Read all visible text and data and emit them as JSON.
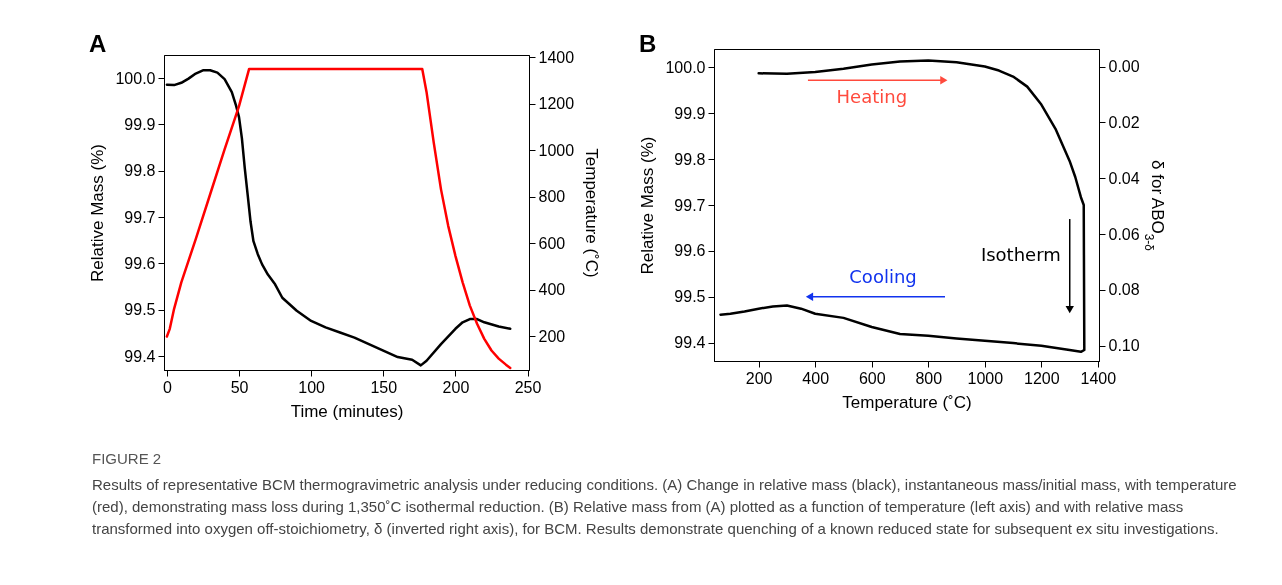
{
  "chart_data": [
    {
      "type": "line",
      "title": "A",
      "xlabel": "Time (minutes)",
      "ylabel": "Relative Mass (%)",
      "y2label": "Temperature (˚C)",
      "xlim": [
        -2,
        251
      ],
      "xticks": [
        0,
        50,
        100,
        150,
        200,
        250
      ],
      "ylim": [
        99.37,
        100.05
      ],
      "yticks": [
        99.4,
        99.5,
        99.6,
        99.7,
        99.8,
        99.9,
        {
          "value": 100,
          "label": "100.0"
        }
      ],
      "y2lim": [
        55,
        1410
      ],
      "y2ticks": [
        200,
        400,
        600,
        800,
        1000,
        1200,
        1400
      ],
      "series": [
        {
          "color": "#000000",
          "x": [
            0,
            5,
            10,
            15,
            20,
            25,
            30,
            35,
            40,
            45,
            48,
            50,
            52,
            54,
            56,
            58,
            60,
            63,
            66,
            70,
            75,
            80,
            90,
            100,
            110,
            120,
            130,
            140,
            150,
            160,
            170,
            176,
            180,
            190,
            200,
            205,
            210,
            215,
            220,
            230,
            238
          ],
          "values": [
            99.986,
            99.985,
            99.99,
            99.999,
            100.01,
            100.017,
            100.017,
            100.012,
            99.998,
            99.97,
            99.94,
            99.916,
            99.87,
            99.805,
            99.748,
            99.69,
            99.648,
            99.62,
            99.598,
            99.576,
            99.555,
            99.526,
            99.498,
            99.476,
            99.462,
            99.451,
            99.44,
            99.426,
            99.412,
            99.398,
            99.392,
            99.38,
            99.39,
            99.426,
            99.459,
            99.473,
            99.48,
            99.48,
            99.473,
            99.464,
            99.459
          ]
        },
        {
          "color": "#ff0000",
          "axis": "y2",
          "x": [
            0,
            2,
            5,
            10,
            20,
            30,
            40,
            50,
            57,
            177,
            180,
            185,
            190,
            195,
            200,
            205,
            210,
            215,
            220,
            225,
            230,
            235,
            238
          ],
          "values": [
            199,
            232,
            318,
            432,
            618,
            811,
            1004,
            1190,
            1350,
            1350,
            1250,
            1032,
            832,
            675,
            546,
            432,
            332,
            254,
            189,
            139,
            104,
            78,
            64
          ]
        }
      ],
      "annotations": [
        "FIGURE 2",
        "Results of representative BCM thermogravimetric analysis under reducing conditions. (A) Change in relative mass (black), instantaneous mass/initial mass, with temperature (red), demonstrating mass loss during 1,350˚C isothermal reduction. (B) Relative mass from (A) plotted as a function of temperature (left axis) and with relative mass transformed into oxygen off-stoichiometry, δ (inverted right axis), for BCM. Results demonstrate quenching of a known reduced state for subsequent ex situ investigations."
      ]
    },
    {
      "type": "line",
      "title": "B",
      "xlabel": "Temperature (˚C)",
      "ylabel": "Relative Mass (%)",
      "y2label": "δ for ABO$_{3-δ}$",
      "xlim": [
        42,
        1404
      ],
      "xticks": [
        200,
        400,
        600,
        800,
        1000,
        1200,
        1400
      ],
      "ylim": [
        99.36,
        100.04
      ],
      "yticks": [
        99.4,
        99.5,
        99.6,
        99.7,
        99.8,
        99.9,
        {
          "value": 100,
          "label": "100.0"
        }
      ],
      "y2lim": [
        0.1055,
        -0.0063
      ],
      "y2ticks": [
        {
          "value": 0,
          "label": "0.00"
        },
        {
          "value": 0.02,
          "label": "0.02"
        },
        {
          "value": 0.04,
          "label": "0.04"
        },
        {
          "value": 0.06,
          "label": "0.06"
        },
        {
          "value": 0.08,
          "label": "0.08"
        },
        {
          "value": 0.1,
          "label": "0.10"
        }
      ],
      "series": [
        {
          "color": "#000000",
          "x": [
            200,
            300,
            400,
            500,
            600,
            700,
            800,
            900,
            1000,
            1050,
            1100,
            1150,
            1200,
            1250,
            1300,
            1320,
            1340,
            1350,
            1352,
            1340,
            1300,
            1200,
            1100,
            1000,
            900,
            800,
            700,
            600,
            500,
            400,
            350,
            300,
            250,
            200,
            150,
            100,
            65
          ],
          "values": [
            99.987,
            99.986,
            99.99,
            99.997,
            100.006,
            100.013,
            100.015,
            100.011,
            100.002,
            99.993,
            99.98,
            99.958,
            99.919,
            99.866,
            99.796,
            99.761,
            99.717,
            99.7,
            99.384,
            99.38,
            99.384,
            99.393,
            99.399,
            99.404,
            99.409,
            99.415,
            99.419,
            99.434,
            99.454,
            99.463,
            99.474,
            99.481,
            99.479,
            99.474,
            99.468,
            99.463,
            99.461
          ]
        }
      ],
      "annotations": [
        "Heating",
        "Cooling",
        "Isotherm"
      ]
    }
  ]
}
